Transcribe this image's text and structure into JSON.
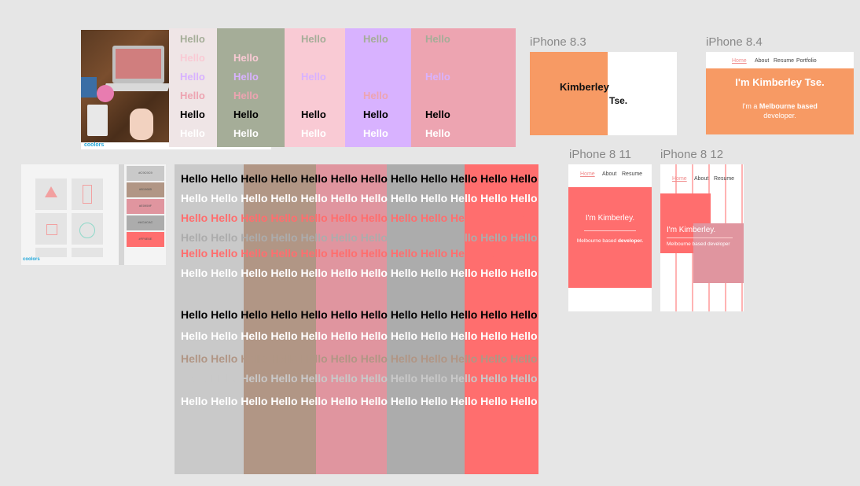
{
  "greeting": "Hello",
  "big_row": "Hello Hello Hello Hello Hello Hello Hello Hello Hello Hello Hello Hello",
  "swatches_top": [
    "#efe5e6",
    "#a5ad98",
    "#f9cad4",
    "#d8b2ff",
    "#eda4b1"
  ],
  "palette_top_rows": [
    [
      {
        "t": "Hello",
        "c": "#a5ad98"
      },
      {
        "t": "Hello",
        "c": "#f9cad4"
      },
      {
        "t": "Hello",
        "c": "#d8b2ff"
      },
      {
        "t": "Hello",
        "c": "#eda4b1"
      },
      {
        "t": "Hello",
        "c": "#000000"
      },
      {
        "t": "Hello",
        "c": "#ffffff"
      }
    ],
    [
      {
        "t": "Hello",
        "c": "#f9cad4"
      },
      {
        "t": "Hello",
        "c": "#d8b2ff"
      },
      {
        "t": "Hello",
        "c": "#eda4b1"
      },
      {
        "t": "Hello",
        "c": "#000000"
      },
      {
        "t": "Hello",
        "c": "#ffffff"
      }
    ],
    [
      {
        "t": "Hello",
        "c": "#a5ad98"
      },
      {
        "t": "Hello",
        "c": "#d8b2ff"
      },
      {
        "t": "Hello",
        "c": "#000000"
      },
      {
        "t": "Hello",
        "c": "#ffffff"
      }
    ],
    [
      {
        "t": "Hello",
        "c": "#a5ad98"
      },
      {
        "t": "Hello",
        "c": "#eda4b1"
      },
      {
        "t": "Hello",
        "c": "#000000"
      },
      {
        "t": "Hello",
        "c": "#ffffff"
      }
    ],
    [
      {
        "t": "Hello",
        "c": "#a5ad98"
      },
      {
        "t": "Hello",
        "c": "#d8b2ff"
      },
      {
        "t": "Hello",
        "c": "#000000"
      },
      {
        "t": "Hello",
        "c": "#ffffff"
      }
    ]
  ],
  "palette_bottom_swatches": [
    "#c9c9c9",
    "#b19685",
    "#e0959f",
    "#acacac",
    "#ff6e6e"
  ],
  "palette_bottom_hex": [
    "#C9C9C9",
    "#B19685",
    "#E0959F",
    "#ACACAC",
    "#FF6E6E"
  ],
  "palette_bottom_rows_colors": [
    "#000000",
    "#ffffff",
    "#ff6e6e",
    "#acacac",
    "#ff6e6e",
    "#ffffff",
    "#000000",
    "#ffffff",
    "#b19685",
    "#c9c9c9",
    "#ffffff"
  ],
  "coolors_logo": "coolors",
  "frames": {
    "f83": {
      "label": "iPhone 8.3",
      "name1": "Kimberley",
      "name2": "Tse."
    },
    "f84": {
      "label": "iPhone 8.4",
      "nav": [
        "Home",
        "About",
        "Resume",
        "Portfolio"
      ],
      "headline": "I'm Kimberley Tse.",
      "sub_pre": "I'm a ",
      "sub_bold": "Melbourne based",
      "sub_post": "developer."
    },
    "f811": {
      "label": "iPhone 8 11",
      "nav": [
        "Home",
        "About",
        "Resume"
      ],
      "headline": "I'm Kimberley.",
      "sub_pre": "Melbourne based ",
      "sub_bold": "developer."
    },
    "f812": {
      "label": "iPhone 8 12",
      "nav": [
        "Home",
        "About",
        "Resume"
      ],
      "headline": "I'm Kimberley.",
      "sub_pre": "Melbourne based developer"
    }
  },
  "colors": {
    "orange": "#f79a64",
    "coral": "#ff6e6e",
    "nav_active": "#f08c8c"
  }
}
